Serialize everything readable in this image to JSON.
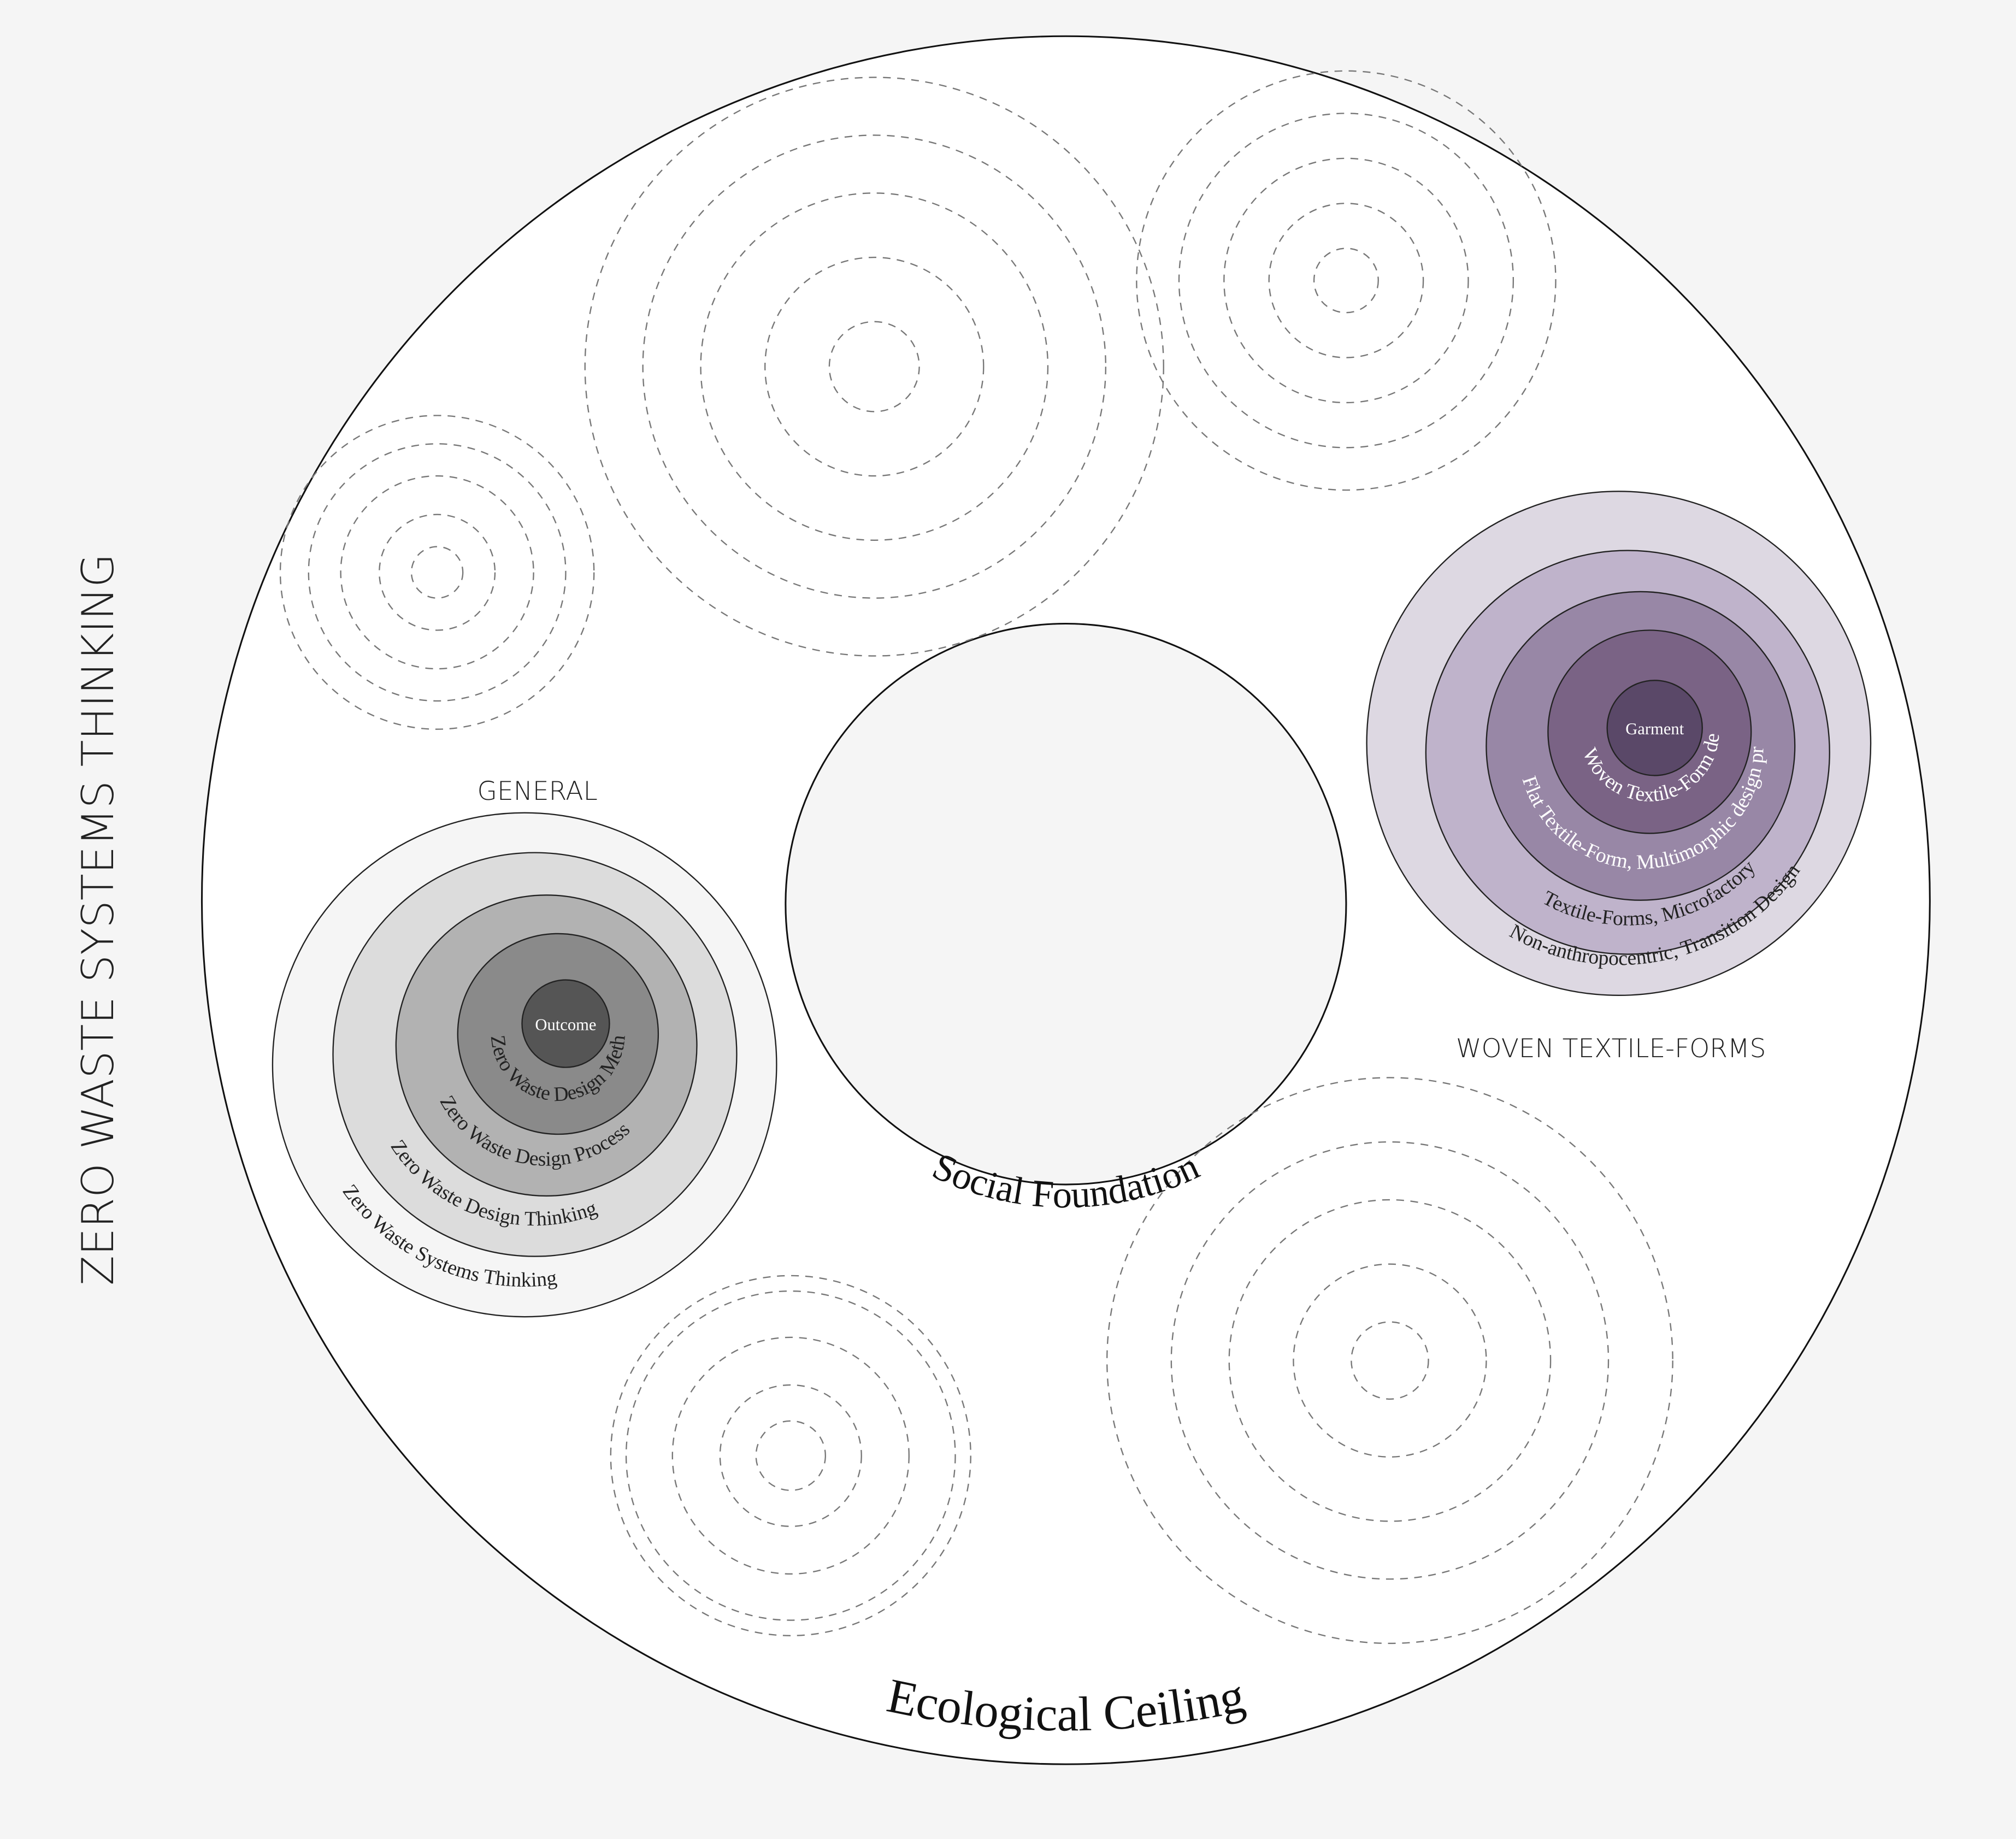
{
  "title": "ZERO WASTE SYSTEMS THINKING",
  "inner_label": "Social Foundation",
  "outer_label": "Ecological Ceiling",
  "groups": [
    {
      "title": "GENERAL",
      "layers": [
        "Zero Waste Systems Thinking",
        "Zero Waste Design Thinking",
        "Zero Waste Design Process",
        "Zero Waste Design Method",
        "Outcome"
      ]
    },
    {
      "title": "WOVEN TEXTILE-FORMS",
      "layers": [
        "Non-anthropocentric, Transition Design",
        "Textile-Forms, Microfactory",
        "Flat Textile-Form, Multimorphic design process",
        "Woven Textile-Form design",
        "Garment"
      ]
    }
  ]
}
